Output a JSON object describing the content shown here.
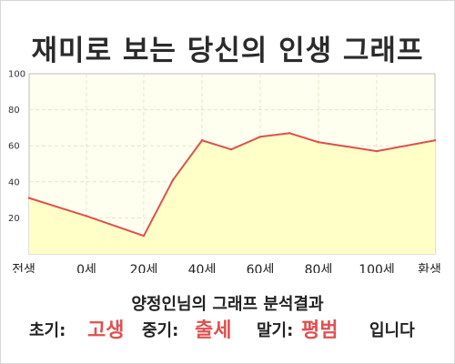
{
  "title": "재미로 보는 당신의 인생 그래프",
  "subtitle": "양정인님의 그래프 분석결과",
  "result": {
    "early_label": "초기:",
    "early_value": "고생",
    "mid_label": "중기:",
    "mid_value": "출세",
    "late_label": "말기:",
    "late_value": "평범",
    "suffix": "입니다"
  },
  "colors": {
    "line": "#d9534f",
    "fill": "#ffffc8",
    "plot_bg": "#fffff0",
    "highlight": "#e05050"
  },
  "chart_data": {
    "type": "area",
    "title": "",
    "xlabel": "",
    "ylabel": "",
    "ylim": [
      0,
      100
    ],
    "yticks": [
      20,
      40,
      60,
      80,
      100
    ],
    "grid": true,
    "x_tick_labels": [
      "전생",
      "0세",
      "20세",
      "40세",
      "60세",
      "80세",
      "100세",
      "환생"
    ],
    "series": [
      {
        "points": [
          [
            "전생",
            31
          ],
          [
            "0세",
            21
          ],
          [
            "20세",
            10
          ],
          [
            "30세",
            41
          ],
          [
            "40세",
            63
          ],
          [
            "50세",
            58
          ],
          [
            "60세",
            65
          ],
          [
            "70세",
            67
          ],
          [
            "80세",
            62
          ],
          [
            "100세",
            57
          ],
          [
            "환생",
            63
          ]
        ]
      }
    ]
  }
}
